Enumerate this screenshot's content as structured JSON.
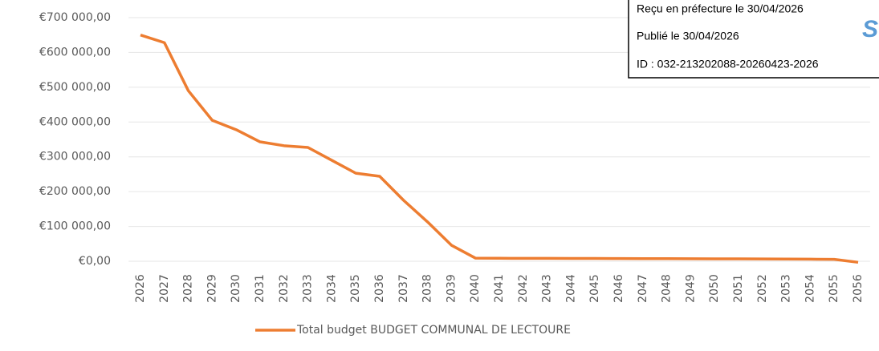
{
  "chart_data": {
    "type": "line",
    "categories": [
      "2026",
      "2027",
      "2028",
      "2029",
      "2030",
      "2031",
      "2032",
      "2033",
      "2034",
      "2035",
      "2036",
      "2037",
      "2038",
      "2039",
      "2040",
      "2041",
      "2042",
      "2043",
      "2044",
      "2045",
      "2046",
      "2047",
      "2048",
      "2049",
      "2050",
      "2051",
      "2052",
      "2053",
      "2054",
      "2055",
      "2056"
    ],
    "series": [
      {
        "name": "Total budget BUDGET COMMUNAL DE LECTOURE",
        "color": "#ed7d31",
        "values": [
          650000,
          628000,
          490000,
          405000,
          378000,
          343000,
          332000,
          327000,
          290000,
          253000,
          244000,
          175000,
          113000,
          46000,
          9000,
          8500,
          8400,
          8300,
          8200,
          8000,
          7800,
          7600,
          7400,
          7200,
          7000,
          6800,
          6500,
          6200,
          6000,
          5500,
          -3000
        ]
      }
    ],
    "ylim": [
      0,
      700000
    ],
    "yticks": [
      {
        "value": 0,
        "label": "€0,00"
      },
      {
        "value": 100000,
        "label": "€100 000,00"
      },
      {
        "value": 200000,
        "label": "€200 000,00"
      },
      {
        "value": 300000,
        "label": "€300 000,00"
      },
      {
        "value": 400000,
        "label": "€400 000,00"
      },
      {
        "value": 500000,
        "label": "€500 000,00"
      },
      {
        "value": 600000,
        "label": "€600 000,00"
      },
      {
        "value": 700000,
        "label": "€700 000,00"
      }
    ],
    "grid": true,
    "legend": "bottom"
  },
  "stamp": {
    "lines": [
      "Reçu en préfecture le 30/04/2026",
      "Publié le 30/04/2026",
      "ID : 032-213202088-20260423-2026"
    ],
    "logo": "S"
  }
}
